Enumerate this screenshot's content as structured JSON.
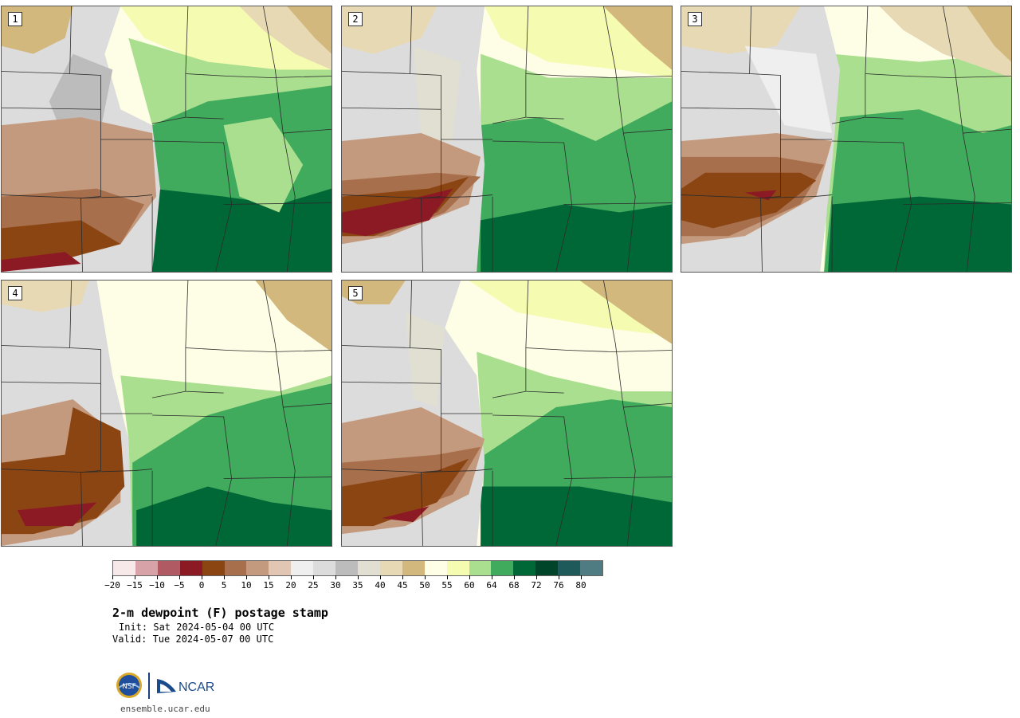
{
  "panels": [
    {
      "label": "1"
    },
    {
      "label": "2"
    },
    {
      "label": "3"
    },
    {
      "label": "4"
    },
    {
      "label": "5"
    }
  ],
  "colorbar": {
    "colors": [
      "#f7e8ea",
      "#d7a2a8",
      "#b05a63",
      "#8c1a24",
      "#8b4513",
      "#a86f4c",
      "#c49a7e",
      "#e0c6b3",
      "#efefef",
      "#dcdcdc",
      "#bcbcbc",
      "#e0dfd2",
      "#e8d9b5",
      "#d2b87c",
      "#fefee6",
      "#f5fbb0",
      "#a9df8e",
      "#41ab5d",
      "#006837",
      "#00442a",
      "#1f5a5a",
      "#4f7b82"
    ],
    "labels": [
      "−20",
      "−15",
      "−10",
      "−5",
      "0",
      "5",
      "10",
      "15",
      "20",
      "25",
      "30",
      "35",
      "40",
      "45",
      "50",
      "55",
      "60",
      "64",
      "68",
      "72",
      "76",
      "80"
    ]
  },
  "title": "2-m dewpoint (F) postage stamp",
  "init": "Init: Sat 2024-05-04 00 UTC",
  "valid": "Valid: Tue 2024-05-07 00 UTC",
  "logo_text": "NCAR",
  "nsf_text": "NSF",
  "url": "ensemble.ucar.edu"
}
